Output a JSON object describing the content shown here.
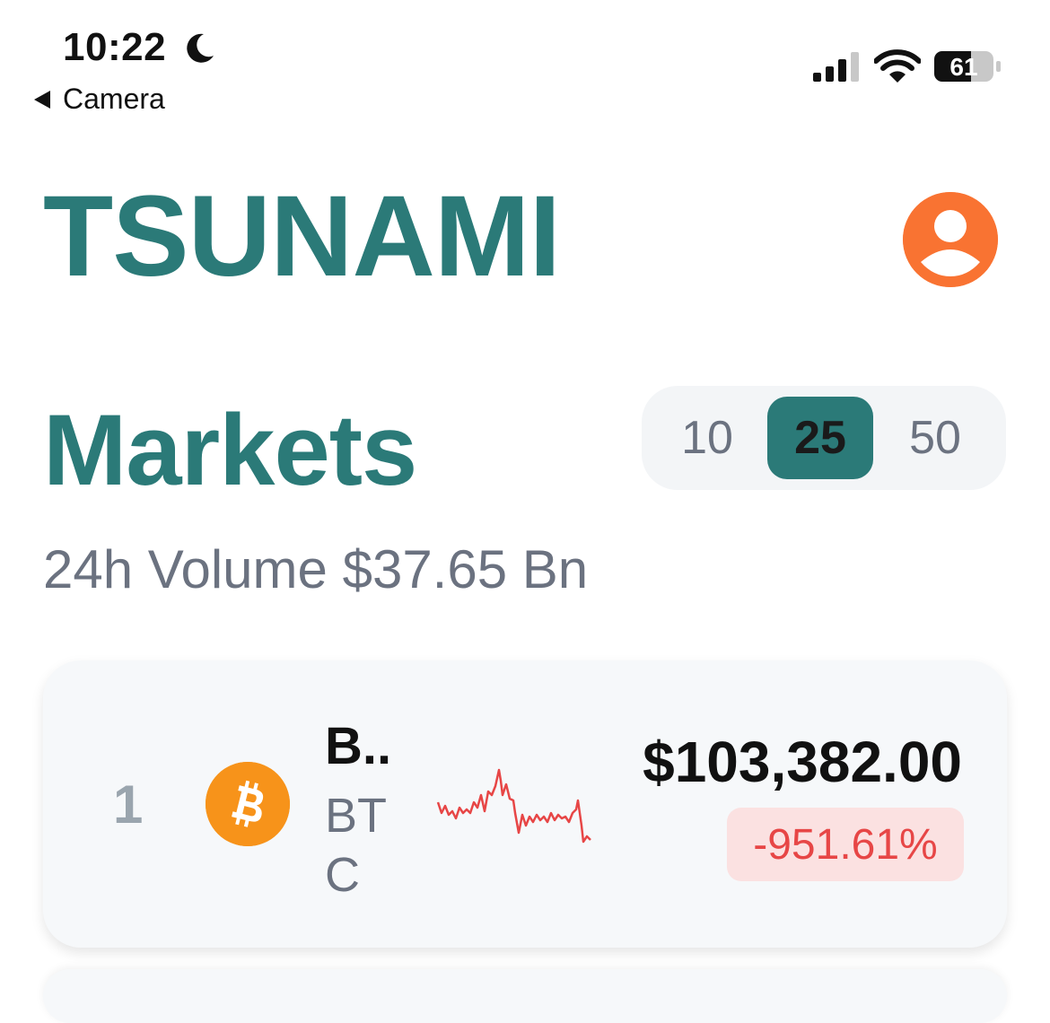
{
  "status_bar": {
    "time": "10:22",
    "moon_icon": "moon-icon",
    "back_app": "Camera",
    "battery_level": "61",
    "icons": [
      "signal-icon",
      "wifi-icon",
      "battery-icon"
    ]
  },
  "header": {
    "app_title": "TSUNAMI",
    "profile_icon": "profile-icon",
    "accent_color": "#2b7a78",
    "profile_color": "#f97332"
  },
  "markets": {
    "title": "Markets",
    "volume_text": "24h Volume $37.65 Bn",
    "count_options": [
      "10",
      "25",
      "50"
    ],
    "selected_count": "25"
  },
  "coins": [
    {
      "rank": "1",
      "name": "B..",
      "symbol": "BTC",
      "icon": "bitcoin-icon",
      "price": "$103,382.00",
      "change": "-951.61%",
      "change_color": "#e74646",
      "icon_color": "#f7931a",
      "sparkline_trend": "down"
    }
  ]
}
